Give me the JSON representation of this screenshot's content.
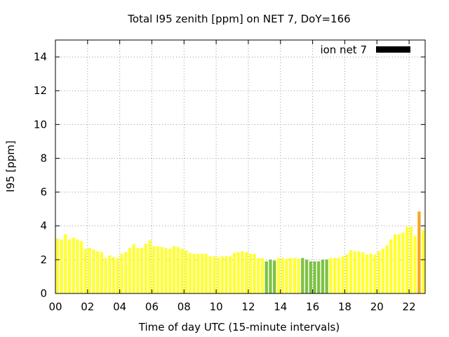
{
  "chart_data": {
    "type": "bar",
    "title": "Total I95 zenith [ppm] on NET 7, DoY=166",
    "xlabel": "Time of day UTC (15-minute intervals)",
    "ylabel": "I95 [ppm]",
    "xlim": [
      0,
      23
    ],
    "ylim": [
      0,
      15
    ],
    "x_ticks": [
      0,
      2,
      4,
      6,
      8,
      10,
      12,
      14,
      16,
      18,
      20,
      22
    ],
    "x_tick_labels": [
      "00",
      "02",
      "04",
      "06",
      "08",
      "10",
      "12",
      "14",
      "16",
      "18",
      "20",
      "22"
    ],
    "y_ticks": [
      0,
      2,
      4,
      6,
      8,
      10,
      12,
      14
    ],
    "y_tick_labels": [
      "0",
      "2",
      "4",
      "6",
      "8",
      "10",
      "12",
      "14"
    ],
    "grid": true,
    "legend": {
      "position": "top-right",
      "label": "ion net 7",
      "color": "#000000"
    },
    "interval_hours": 0.25,
    "colors": {
      "yellow": "#ffff33",
      "green": "#7ec242",
      "orange": "#f5a623"
    },
    "series": [
      {
        "values": [
          3.25,
          3.2,
          3.5,
          3.2,
          3.3,
          3.2,
          3.1,
          2.65,
          2.7,
          2.6,
          2.5,
          2.45,
          2.1,
          2.25,
          2.15,
          2.1,
          2.35,
          2.45,
          2.7,
          2.9,
          2.7,
          2.7,
          2.95,
          3.15,
          2.8,
          2.8,
          2.75,
          2.7,
          2.65,
          2.8,
          2.75,
          2.65,
          2.55,
          2.4,
          2.35,
          2.35,
          2.35,
          2.35,
          2.2,
          2.2,
          2.15,
          2.2,
          2.2,
          2.2,
          2.4,
          2.45,
          2.5,
          2.45,
          2.35,
          2.35,
          2.1,
          2.1,
          1.9,
          2.0,
          1.95,
          2.1,
          2.1,
          2.05,
          2.1,
          2.1,
          2.05,
          2.1,
          2.0,
          1.9,
          1.9,
          1.9,
          2.0,
          2.0,
          2.1,
          2.1,
          2.1,
          2.2,
          2.3,
          2.55,
          2.5,
          2.5,
          2.45,
          2.3,
          2.35,
          2.3,
          2.5,
          2.65,
          2.85,
          3.2,
          3.5,
          3.5,
          3.6,
          3.95,
          3.95,
          3.4,
          4.85,
          3.75
        ],
        "colors": [
          "yellow",
          "yellow",
          "yellow",
          "yellow",
          "yellow",
          "yellow",
          "yellow",
          "yellow",
          "yellow",
          "yellow",
          "yellow",
          "yellow",
          "yellow",
          "yellow",
          "yellow",
          "yellow",
          "yellow",
          "yellow",
          "yellow",
          "yellow",
          "yellow",
          "yellow",
          "yellow",
          "yellow",
          "yellow",
          "yellow",
          "yellow",
          "yellow",
          "yellow",
          "yellow",
          "yellow",
          "yellow",
          "yellow",
          "yellow",
          "yellow",
          "yellow",
          "yellow",
          "yellow",
          "yellow",
          "yellow",
          "yellow",
          "yellow",
          "yellow",
          "yellow",
          "yellow",
          "yellow",
          "yellow",
          "yellow",
          "yellow",
          "yellow",
          "yellow",
          "yellow",
          "green",
          "green",
          "green",
          "yellow",
          "yellow",
          "yellow",
          "yellow",
          "yellow",
          "yellow",
          "green",
          "green",
          "green",
          "green",
          "green",
          "green",
          "green",
          "yellow",
          "yellow",
          "yellow",
          "yellow",
          "yellow",
          "yellow",
          "yellow",
          "yellow",
          "yellow",
          "yellow",
          "yellow",
          "yellow",
          "yellow",
          "yellow",
          "yellow",
          "yellow",
          "yellow",
          "yellow",
          "yellow",
          "yellow",
          "yellow",
          "yellow",
          "orange",
          "yellow"
        ]
      }
    ]
  }
}
